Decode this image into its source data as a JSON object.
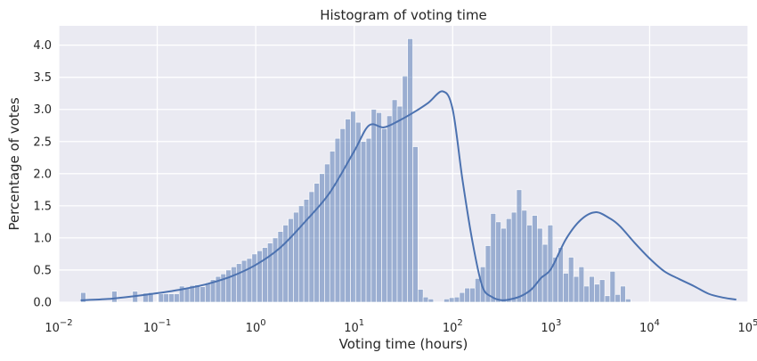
{
  "chart_data": {
    "type": "bar",
    "title": "Histogram of voting time",
    "xlabel": "Voting time (hours)",
    "ylabel": "Percentage of votes",
    "x_scale": "log",
    "xlim": [
      0.01,
      100000
    ],
    "ylim": [
      0,
      4.3
    ],
    "grid": true,
    "legend": "none",
    "x_ticks": [
      {
        "value": 0.01,
        "base": "10",
        "exp": "−2"
      },
      {
        "value": 0.1,
        "base": "10",
        "exp": "−1"
      },
      {
        "value": 1,
        "base": "10",
        "exp": "0"
      },
      {
        "value": 10,
        "base": "10",
        "exp": "1"
      },
      {
        "value": 100,
        "base": "10",
        "exp": "2"
      },
      {
        "value": 1000,
        "base": "10",
        "exp": "3"
      },
      {
        "value": 10000,
        "base": "10",
        "exp": "4"
      },
      {
        "value": 100000,
        "base": "10",
        "exp": "5"
      }
    ],
    "y_ticks": [
      "0.0",
      "0.5",
      "1.0",
      "1.5",
      "2.0",
      "2.5",
      "3.0",
      "3.5",
      "4.0"
    ],
    "bar_color": "#4C72B0",
    "kde_color": "#4C72B0",
    "background_color": "#EAEAF2",
    "bins": {
      "log10_start": -1.778,
      "log10_width": 0.0527,
      "values": [
        0.15,
        0,
        0,
        0,
        0,
        0,
        0.17,
        0,
        0,
        0,
        0.17,
        0,
        0.14,
        0.15,
        0,
        0.13,
        0.13,
        0.13,
        0.13,
        0.25,
        0.22,
        0.26,
        0.27,
        0.24,
        0.3,
        0.35,
        0.4,
        0.44,
        0.5,
        0.55,
        0.6,
        0.65,
        0.68,
        0.75,
        0.8,
        0.85,
        0.92,
        1.0,
        1.1,
        1.2,
        1.3,
        1.4,
        1.5,
        1.6,
        1.72,
        1.85,
        2.0,
        2.15,
        2.35,
        2.55,
        2.7,
        2.85,
        2.97,
        2.8,
        2.5,
        2.55,
        3.0,
        2.95,
        2.7,
        2.9,
        3.15,
        3.05,
        3.52,
        4.1,
        2.42,
        0.2,
        0.08,
        0.05,
        0,
        0,
        0.05,
        0.07,
        0.08,
        0.15,
        0.22,
        0.22,
        0.37,
        0.55,
        0.88,
        1.38,
        1.25,
        1.15,
        1.3,
        1.4,
        1.75,
        1.43,
        1.2,
        1.35,
        1.15,
        0.9,
        1.2,
        0.7,
        0.85,
        0.45,
        0.7,
        0.4,
        0.55,
        0.25,
        0.4,
        0.28,
        0.35,
        0.1,
        0.48,
        0.12,
        0.25,
        0.05
      ]
    },
    "kde": {
      "log10_x": [
        -1.778,
        -1.5,
        -1.25,
        -1.0,
        -0.75,
        -0.5,
        -0.25,
        0,
        0.25,
        0.5,
        0.75,
        1.0,
        1.15,
        1.3,
        1.45,
        1.6,
        1.75,
        1.9,
        2.0,
        2.1,
        2.2,
        2.3,
        2.4,
        2.5,
        2.6,
        2.7,
        2.8,
        2.9,
        3.0,
        3.15,
        3.3,
        3.45,
        3.6,
        3.7,
        3.85,
        4.0,
        4.15,
        4.3,
        4.45,
        4.6,
        4.75,
        4.88
      ],
      "y": [
        0.03,
        0.05,
        0.09,
        0.14,
        0.2,
        0.28,
        0.4,
        0.58,
        0.85,
        1.25,
        1.7,
        2.35,
        2.75,
        2.72,
        2.82,
        2.95,
        3.1,
        3.28,
        3.0,
        1.9,
        0.95,
        0.25,
        0.08,
        0.03,
        0.05,
        0.1,
        0.2,
        0.38,
        0.52,
        0.98,
        1.28,
        1.4,
        1.3,
        1.18,
        0.92,
        0.68,
        0.48,
        0.36,
        0.25,
        0.13,
        0.07,
        0.04
      ]
    }
  }
}
